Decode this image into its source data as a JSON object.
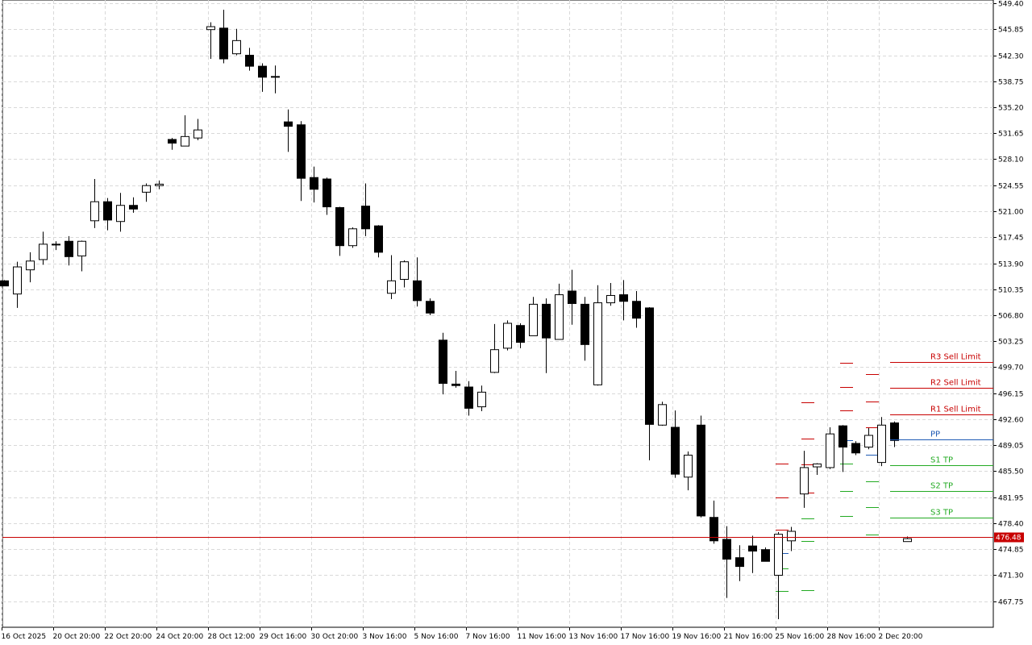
{
  "chart_data": {
    "type": "candlestick",
    "grid": true,
    "ylim": [
      464.2,
      549.4
    ],
    "y_ticks": [
      "549.40",
      "545.85",
      "542.30",
      "538.75",
      "535.20",
      "531.65",
      "528.10",
      "524.55",
      "521.00",
      "517.45",
      "513.90",
      "510.35",
      "506.80",
      "503.25",
      "499.70",
      "496.15",
      "492.60",
      "489.05",
      "485.50",
      "481.95",
      "478.40",
      "474.85",
      "471.30",
      "467.75"
    ],
    "x_ticks": [
      {
        "i": 0,
        "label": "16 Oct 2025"
      },
      {
        "i": 4,
        "label": "20 Oct 20:00"
      },
      {
        "i": 8,
        "label": "22 Oct 20:00"
      },
      {
        "i": 12,
        "label": "24 Oct 20:00"
      },
      {
        "i": 16,
        "label": "28 Oct 12:00"
      },
      {
        "i": 20,
        "label": "29 Oct 16:00"
      },
      {
        "i": 24,
        "label": "30 Oct 20:00"
      },
      {
        "i": 28,
        "label": "3 Nov 16:00"
      },
      {
        "i": 32,
        "label": "5 Nov 16:00"
      },
      {
        "i": 36,
        "label": "7 Nov 16:00"
      },
      {
        "i": 40,
        "label": "11 Nov 16:00"
      },
      {
        "i": 44,
        "label": "13 Nov 16:00"
      },
      {
        "i": 48,
        "label": "17 Nov 16:00"
      },
      {
        "i": 52,
        "label": "19 Nov 16:00"
      },
      {
        "i": 56,
        "label": "21 Nov 16:00"
      },
      {
        "i": 60,
        "label": "25 Nov 16:00"
      },
      {
        "i": 64,
        "label": "28 Nov 16:00"
      },
      {
        "i": 68,
        "label": "2 Dec 20:00"
      }
    ],
    "candles": [
      [
        511.5,
        510.8,
        511.6,
        510.8
      ],
      [
        509.7,
        513.4,
        514.1,
        507.8
      ],
      [
        513.0,
        514.2,
        515.4,
        511.3
      ],
      [
        514.4,
        516.5,
        518.2,
        513.7
      ],
      [
        516.4,
        516.5,
        516.9,
        515.7
      ],
      [
        516.9,
        514.8,
        517.6,
        513.6
      ],
      [
        514.9,
        516.9,
        517.0,
        512.8
      ],
      [
        519.7,
        522.3,
        525.4,
        518.7
      ],
      [
        522.3,
        519.8,
        522.8,
        518.4
      ],
      [
        519.6,
        521.8,
        523.5,
        518.2
      ],
      [
        521.8,
        521.3,
        522.9,
        520.8
      ],
      [
        523.6,
        524.5,
        524.8,
        522.3
      ],
      [
        524.5,
        524.7,
        525.2,
        524.0
      ],
      [
        530.8,
        530.3,
        531.0,
        529.4
      ],
      [
        529.9,
        531.2,
        534.1,
        530.1
      ],
      [
        531.0,
        532.1,
        533.6,
        530.7
      ],
      [
        545.8,
        546.2,
        546.8,
        541.8
      ],
      [
        546.0,
        541.8,
        548.5,
        541.2
      ],
      [
        542.5,
        544.3,
        545.9,
        542.3
      ],
      [
        542.3,
        540.8,
        543.3,
        540.2
      ],
      [
        540.8,
        539.3,
        541.2,
        537.3
      ],
      [
        539.4,
        539.4,
        540.9,
        537.1
      ],
      [
        533.2,
        532.6,
        534.9,
        529.1
      ],
      [
        532.8,
        525.5,
        533.3,
        522.4
      ],
      [
        525.6,
        524.0,
        527.1,
        522.2
      ],
      [
        525.4,
        521.6,
        525.6,
        520.5
      ],
      [
        521.5,
        516.3,
        521.6,
        514.9
      ],
      [
        516.3,
        518.6,
        518.8,
        516.0
      ],
      [
        521.7,
        518.6,
        524.8,
        517.6
      ],
      [
        519.0,
        515.4,
        519.1,
        514.7
      ],
      [
        509.8,
        511.5,
        515.0,
        509.0
      ],
      [
        511.7,
        514.1,
        514.3,
        510.6
      ],
      [
        511.5,
        508.8,
        514.7,
        508.0
      ],
      [
        508.7,
        507.1,
        509.1,
        506.8
      ],
      [
        503.4,
        497.5,
        504.4,
        496.0
      ],
      [
        497.4,
        497.2,
        499.2,
        496.9
      ],
      [
        497.0,
        494.1,
        497.8,
        493.1
      ],
      [
        494.3,
        496.3,
        497.2,
        493.7
      ],
      [
        499.0,
        502.1,
        505.6,
        498.9
      ],
      [
        502.3,
        505.7,
        506.1,
        502.0
      ],
      [
        505.4,
        503.1,
        505.7,
        502.3
      ],
      [
        504.0,
        508.3,
        509.3,
        504.0
      ],
      [
        508.3,
        503.7,
        509.1,
        498.9
      ],
      [
        503.5,
        509.6,
        511.1,
        503.5
      ],
      [
        510.1,
        508.4,
        513.0,
        505.5
      ],
      [
        508.3,
        502.8,
        509.3,
        500.6
      ],
      [
        497.3,
        508.5,
        510.9,
        497.2
      ],
      [
        508.5,
        509.5,
        511.2,
        508.1
      ],
      [
        509.6,
        508.7,
        511.6,
        506.1
      ],
      [
        508.7,
        506.4,
        510.1,
        505.1
      ],
      [
        507.8,
        491.9,
        507.9,
        487.0
      ],
      [
        491.8,
        494.6,
        495.0,
        491.7
      ],
      [
        491.5,
        485.1,
        493.8,
        484.6
      ],
      [
        484.7,
        487.7,
        488.2,
        482.9
      ],
      [
        491.8,
        479.4,
        493.1,
        479.2
      ],
      [
        479.2,
        476.0,
        481.5,
        475.6
      ],
      [
        476.2,
        473.5,
        478.0,
        468.2
      ],
      [
        473.7,
        472.5,
        475.4,
        470.5
      ],
      [
        475.3,
        474.6,
        476.7,
        471.6
      ],
      [
        474.8,
        473.2,
        475.1,
        473.2
      ],
      [
        471.3,
        476.9,
        477.2,
        465.3
      ],
      [
        476.0,
        477.3,
        477.9,
        474.6
      ],
      [
        482.4,
        486.0,
        488.3,
        480.5
      ],
      [
        486.1,
        486.5,
        486.6,
        485.0
      ],
      [
        486.0,
        490.6,
        491.5,
        485.8
      ],
      [
        491.7,
        488.8,
        491.8,
        485.4
      ],
      [
        489.3,
        488.0,
        489.6,
        487.7
      ],
      [
        488.8,
        490.4,
        491.4,
        488.5
      ],
      [
        486.7,
        491.8,
        492.9,
        486.2
      ],
      [
        492.1,
        489.7,
        492.3,
        488.8
      ],
      [
        475.9,
        476.3,
        476.6,
        475.9
      ]
    ],
    "pivot_levels": [
      {
        "name": "R3 Sell Limit",
        "value": 500.4,
        "color": "#c80000"
      },
      {
        "name": "R2 Sell Limit",
        "value": 496.9,
        "color": "#c80000"
      },
      {
        "name": "R1 Sell Limit",
        "value": 493.3,
        "color": "#c80000"
      },
      {
        "name": "PP",
        "value": 489.8,
        "color": "#1e5ab4"
      },
      {
        "name": "S1 TP",
        "value": 486.3,
        "color": "#22aa22"
      },
      {
        "name": "S2 TP",
        "value": 482.8,
        "color": "#22aa22"
      },
      {
        "name": "S3 TP",
        "value": 479.2,
        "color": "#22aa22"
      }
    ],
    "pivot_history": [
      {
        "i": 60,
        "r3": null,
        "r2": null,
        "r1": 486.6,
        "pp": null,
        "s1": null,
        "s2": null,
        "s3": null
      },
      {
        "i": 61,
        "r3": null,
        "r2": null,
        "r1": null,
        "pp": null,
        "s1": null,
        "s2": null,
        "s3": null
      },
      {
        "i": 62,
        "r3": null,
        "r2": null,
        "r1": null,
        "pp": null,
        "s1": null,
        "s2": null,
        "s3": null
      },
      {
        "i": 63,
        "r3": null,
        "r2": null,
        "r1": null,
        "pp": null,
        "s1": null,
        "s2": null,
        "s3": null
      }
    ],
    "pivot_marks": [
      [
        960,
        486.6,
        "#c80000"
      ],
      [
        960,
        481.9,
        "#c80000"
      ],
      [
        960,
        477.5,
        "#c80000"
      ],
      [
        960,
        474.3,
        "#1e5ab4"
      ],
      [
        960,
        472.2,
        "#22aa22"
      ],
      [
        960,
        469.2,
        "#22aa22"
      ],
      [
        992,
        494.9,
        "#c80000"
      ],
      [
        992,
        490.0,
        "#c80000"
      ],
      [
        992,
        486.4,
        "#c80000"
      ],
      [
        992,
        482.6,
        "#c80000"
      ],
      [
        992,
        479.1,
        "#22aa22"
      ],
      [
        992,
        476.0,
        "#22aa22"
      ],
      [
        992,
        469.3,
        "#22aa22"
      ],
      [
        1040,
        500.3,
        "#c80000"
      ],
      [
        1040,
        497.0,
        "#c80000"
      ],
      [
        1040,
        493.8,
        "#c80000"
      ],
      [
        1040,
        489.7,
        "#1e5ab4"
      ],
      [
        1040,
        486.6,
        "#22aa22"
      ],
      [
        1040,
        482.8,
        "#22aa22"
      ],
      [
        1040,
        479.4,
        "#22aa22"
      ],
      [
        1072,
        498.8,
        "#c80000"
      ],
      [
        1072,
        495.0,
        "#c80000"
      ],
      [
        1072,
        491.5,
        "#c80000"
      ],
      [
        1072,
        487.8,
        "#1e5ab4"
      ],
      [
        1072,
        484.1,
        "#22aa22"
      ],
      [
        1072,
        480.6,
        "#22aa22"
      ],
      [
        1072,
        476.9,
        "#22aa22"
      ]
    ],
    "current_price": {
      "value": 476.48,
      "label": "476.48",
      "color": "#c80000"
    }
  }
}
